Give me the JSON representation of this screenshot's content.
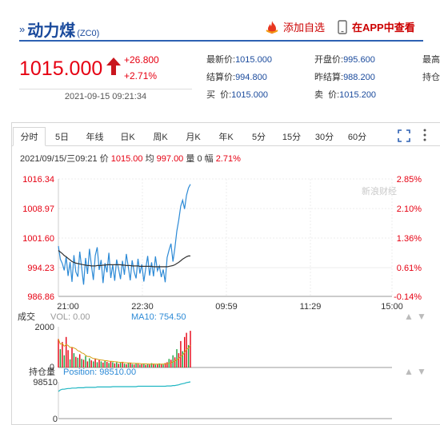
{
  "header": {
    "title_mark": "»",
    "title": "动力煤",
    "code": "(ZC0)",
    "fav_label": "添加自选",
    "app_label": "在APP中查看"
  },
  "price": {
    "last": "1015.000",
    "change": "+26.800",
    "change_pct": "+2.71%",
    "datetime": "2021-09-15 09:21:34"
  },
  "quotes": {
    "latest_label": "最新价:",
    "latest": "1015.000",
    "settle_label": "结算价:",
    "settle": "994.800",
    "buy_label": "买  价:",
    "buy": "1015.000",
    "open_label": "开盘价:",
    "open": "995.600",
    "prev_settle_label": "昨结算:",
    "prev_settle": "988.200",
    "sell_label": "卖  价:",
    "sell": "1015.200",
    "high_label": "最高",
    "hold_label": "持仓"
  },
  "tabs": [
    "分时",
    "5日",
    "年线",
    "日K",
    "周K",
    "月K",
    "年K",
    "5分",
    "15分",
    "30分",
    "60分"
  ],
  "info": {
    "datetime": "2021/09/15/三09:21",
    "price_label": "价",
    "price": "1015.00",
    "avg_label": "均",
    "avg": "997.00",
    "vol_label": "量",
    "vol": "0",
    "amp_label": "幅",
    "amp": "2.71%"
  },
  "watermark": "新浪财经",
  "chart_data": {
    "type": "line",
    "y_ticks": [
      "1016.34",
      "1008.97",
      "1001.60",
      "994.23",
      "986.86"
    ],
    "pct_ticks": [
      "2.85%",
      "2.10%",
      "1.36%",
      "0.61%",
      "-0.14%"
    ],
    "x_ticks": [
      "21:00",
      "22:30",
      "09:59",
      "11:29",
      "15:00"
    ],
    "ylim": [
      986.86,
      1016.34
    ],
    "series": [
      {
        "color": "#2c8ad6",
        "values": [
          999.5,
          996.2,
          995.1,
          993.4,
          996.8,
          992.0,
          995.5,
          990.5,
          997.2,
          993.0,
          991.8,
          998.1,
          994.0,
          989.8,
          996.5,
          992.5,
          998.8,
          994.6,
          991.0,
          997.1,
          999.2,
          993.5,
          996.0,
          990.2,
          995.2,
          992.9,
          997.8,
          991.5,
          994.8,
          990.8,
          996.1,
          993.8,
          991.2,
          995.8,
          992.3,
          997.5,
          994.2,
          990.9,
          995.9,
          993.1,
          991.4,
          996.3,
          992.6,
          994.9,
          990.6,
          993.9,
          997.0,
          992.1,
          995.4,
          991.9,
          996.9,
          993.3,
          994.5,
          991.7,
          993.6,
          990.4,
          996.6,
          998.5,
          1000.1,
          995.6,
          999.0,
          1003.2,
          1006.0,
          1009.5,
          1011.0,
          1008.8,
          1012.2,
          1014.1,
          1015.0
        ]
      },
      {
        "color": "#333333",
        "values": [
          998.4,
          998.0,
          997.6,
          997.1,
          996.8,
          996.4,
          996.0,
          995.6,
          995.4,
          995.2,
          995.1,
          995.0,
          994.9,
          994.8,
          994.7,
          994.6,
          994.6,
          994.5,
          994.5,
          994.5,
          994.6,
          994.6,
          994.6,
          994.7,
          994.7,
          994.8,
          994.8,
          994.8,
          994.8,
          994.8,
          994.8,
          994.8,
          994.8,
          994.7,
          994.7,
          994.6,
          994.6,
          994.6,
          994.5,
          994.5,
          994.5,
          994.5,
          994.4,
          994.4,
          994.4,
          994.4,
          994.4,
          994.4,
          994.4,
          994.3,
          994.3,
          994.3,
          994.3,
          994.3,
          994.3,
          994.3,
          994.3,
          994.4,
          994.5,
          994.6,
          994.8,
          995.1,
          995.4,
          995.8,
          996.2,
          996.5,
          996.8,
          997.0,
          997.0
        ]
      }
    ],
    "volume_label": "成交",
    "volume_legend": "VOL: 0.00",
    "ma_legend": "MA10: 754.50",
    "volume_ylim": [
      0,
      2000
    ],
    "volume_ticks": [
      "2000",
      "0"
    ],
    "volume_values": [
      1400,
      900,
      1250,
      600,
      1500,
      850,
      400,
      1000,
      700,
      520,
      480,
      650,
      420,
      380,
      560,
      300,
      450,
      350,
      300,
      420,
      260,
      380,
      300,
      240,
      340,
      280,
      220,
      300,
      260,
      200,
      250,
      180,
      230,
      280,
      190,
      160,
      210,
      240,
      170,
      150,
      200,
      180,
      140,
      160,
      190,
      130,
      170,
      150,
      210,
      180,
      140,
      160,
      200,
      170,
      150,
      220,
      260,
      420,
      380,
      600,
      500,
      900,
      700,
      1300,
      800,
      1500,
      1700,
      1100,
      1800
    ],
    "volume_colors": [
      "r",
      "g",
      "r",
      "g",
      "r",
      "r",
      "g",
      "r",
      "g",
      "r",
      "g",
      "r",
      "g",
      "r",
      "g",
      "r",
      "g",
      "r",
      "g",
      "r",
      "g",
      "r",
      "g",
      "r",
      "g",
      "r",
      "g",
      "r",
      "g",
      "r",
      "g",
      "r",
      "g",
      "r",
      "g",
      "r",
      "g",
      "r",
      "g",
      "r",
      "g",
      "r",
      "g",
      "r",
      "g",
      "r",
      "g",
      "r",
      "g",
      "r",
      "g",
      "r",
      "g",
      "r",
      "g",
      "r",
      "r",
      "g",
      "r",
      "g",
      "r",
      "g",
      "r",
      "r",
      "g",
      "r",
      "r",
      "g",
      "r"
    ],
    "open_interest_label": "持仓量",
    "position_legend": "Position: 98510.00",
    "oi_ticks": [
      "98510",
      "0"
    ],
    "oi_values": [
      0.74,
      0.78,
      0.8,
      0.8,
      0.81,
      0.82,
      0.82,
      0.83,
      0.83,
      0.83,
      0.84,
      0.84,
      0.84,
      0.84,
      0.85,
      0.85,
      0.85,
      0.85,
      0.85,
      0.85,
      0.86,
      0.86,
      0.86,
      0.86,
      0.86,
      0.86,
      0.86,
      0.86,
      0.87,
      0.87,
      0.87,
      0.87,
      0.87,
      0.87,
      0.87,
      0.87,
      0.87,
      0.87,
      0.87,
      0.87,
      0.87,
      0.88,
      0.88,
      0.88,
      0.88,
      0.88,
      0.88,
      0.88,
      0.88,
      0.88,
      0.88,
      0.88,
      0.88,
      0.88,
      0.88,
      0.88,
      0.89,
      0.89,
      0.89,
      0.9,
      0.9,
      0.91,
      0.92,
      0.94,
      0.95,
      0.96,
      0.98,
      0.99,
      1.0
    ]
  }
}
